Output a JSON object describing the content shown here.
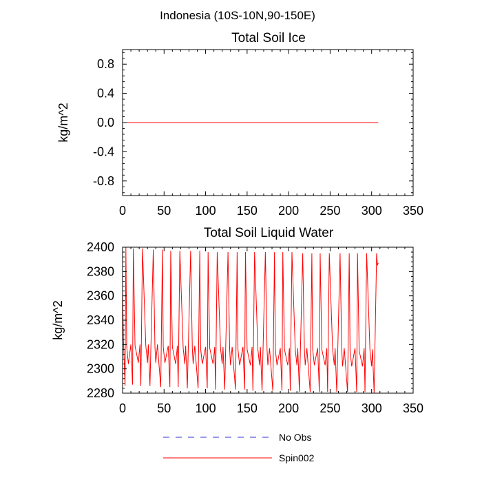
{
  "figure_title": "Indonesia (10S-10N,90-150E)",
  "legend": {
    "placement": "bottom",
    "entries": [
      {
        "label": "No Obs",
        "color": "#3333cc",
        "dash": "dashed"
      },
      {
        "label": "Spin002",
        "color": "#ff0000",
        "dash": "solid"
      }
    ]
  },
  "chart_data": [
    {
      "type": "line",
      "title": "Total Soil Ice",
      "xlabel": "",
      "ylabel": "kg/m^2",
      "xlim": [
        0,
        350
      ],
      "ylim": [
        -1.0,
        1.0
      ],
      "xticks": [
        0,
        50,
        100,
        150,
        200,
        250,
        300,
        350
      ],
      "yticks": [
        -0.8,
        -0.4,
        0.0,
        0.4,
        0.8
      ],
      "ytick_labels": [
        "-0.8",
        "-0.4",
        "0.0",
        "0.4",
        "0.8"
      ],
      "grid": false,
      "series": [
        {
          "name": "Spin002",
          "color": "#ff0000",
          "x": [
            0,
            308
          ],
          "y": [
            0,
            0
          ]
        }
      ]
    },
    {
      "type": "line",
      "title": "Total Soil Liquid Water",
      "xlabel": "",
      "ylabel": "kg/m^2",
      "xlim": [
        0,
        350
      ],
      "ylim": [
        2280,
        2400
      ],
      "xticks": [
        0,
        50,
        100,
        150,
        200,
        250,
        300,
        350
      ],
      "yticks": [
        2280,
        2300,
        2320,
        2340,
        2360,
        2380,
        2400
      ],
      "ytick_labels": [
        "2280",
        "2300",
        "2320",
        "2340",
        "2360",
        "2380",
        "2400"
      ],
      "grid": false,
      "series": [
        {
          "name": "Spin002",
          "color": "#ff0000",
          "x": [
            0,
            1,
            3,
            4,
            5,
            7,
            10,
            12,
            13,
            15,
            19,
            21,
            22,
            24,
            28,
            30,
            31,
            33,
            37,
            39,
            40,
            42,
            46,
            48,
            49,
            51,
            55,
            57,
            58,
            60,
            64,
            66,
            67,
            69,
            73,
            75,
            76,
            78,
            82,
            84,
            85,
            87,
            91,
            93,
            94,
            96,
            100,
            102,
            103,
            105,
            109,
            111,
            112,
            114,
            118,
            120,
            121,
            123,
            127,
            129,
            130,
            132,
            136,
            138,
            139,
            141,
            145,
            147,
            148,
            150,
            154,
            156,
            157,
            159,
            163,
            165,
            166,
            168,
            172,
            174,
            175,
            177,
            181,
            183,
            184,
            186,
            190,
            192,
            193,
            195,
            199,
            201,
            202,
            204,
            208,
            210,
            211,
            213,
            217,
            219,
            220,
            222,
            226,
            228,
            229,
            231,
            235,
            237,
            238,
            240,
            244,
            246,
            247,
            249,
            253,
            255,
            256,
            258,
            262,
            264,
            265,
            267,
            271,
            273,
            274,
            276,
            280,
            282,
            283,
            285,
            289,
            291,
            292,
            294,
            298,
            300,
            301,
            303,
            306,
            307,
            308
          ],
          "y": [
            2365,
            2325,
            2286,
            2400,
            2318,
            2304,
            2320,
            2287,
            2399,
            2319,
            2305,
            2320,
            2286,
            2399,
            2319,
            2305,
            2320,
            2286,
            2398,
            2318,
            2305,
            2320,
            2285,
            2398,
            2318,
            2305,
            2319,
            2285,
            2397,
            2318,
            2304,
            2319,
            2285,
            2397,
            2317,
            2304,
            2319,
            2284,
            2397,
            2317,
            2304,
            2319,
            2284,
            2397,
            2317,
            2304,
            2318,
            2284,
            2396,
            2317,
            2304,
            2318,
            2283,
            2396,
            2317,
            2304,
            2318,
            2283,
            2396,
            2316,
            2303,
            2318,
            2283,
            2396,
            2316,
            2303,
            2318,
            2283,
            2396,
            2316,
            2303,
            2318,
            2282,
            2396,
            2316,
            2303,
            2318,
            2282,
            2396,
            2316,
            2303,
            2317,
            2282,
            2396,
            2316,
            2303,
            2317,
            2282,
            2396,
            2316,
            2303,
            2317,
            2282,
            2396,
            2316,
            2303,
            2317,
            2281,
            2395,
            2316,
            2303,
            2317,
            2281,
            2395,
            2316,
            2303,
            2317,
            2281,
            2395,
            2316,
            2303,
            2317,
            2281,
            2395,
            2316,
            2303,
            2317,
            2281,
            2395,
            2316,
            2302,
            2317,
            2281,
            2395,
            2315,
            2302,
            2317,
            2281,
            2395,
            2315,
            2302,
            2317,
            2281,
            2395,
            2315,
            2302,
            2316,
            2280,
            2395,
            2385,
            2387
          ]
        }
      ]
    }
  ]
}
